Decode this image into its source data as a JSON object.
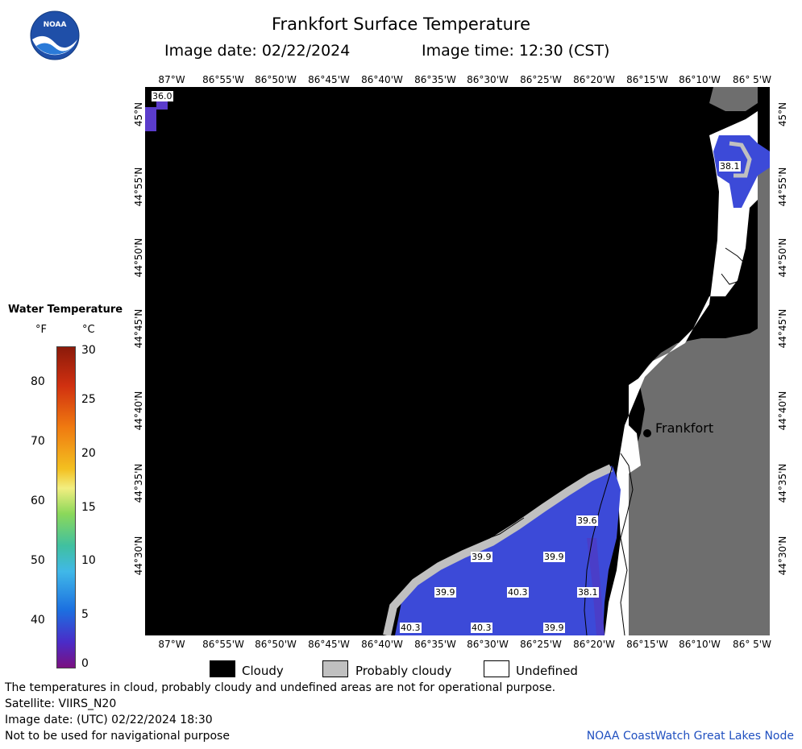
{
  "header": {
    "title": "Frankfort Surface Temperature",
    "image_date": "Image date: 02/22/2024",
    "image_time": "Image time: 12:30 (CST)"
  },
  "logo": {
    "text": "NOAA"
  },
  "map": {
    "lon_labels": [
      "87°W",
      "86°55'W",
      "86°50'W",
      "86°45'W",
      "86°40'W",
      "86°35'W",
      "86°30'W",
      "86°25'W",
      "86°20'W",
      "86°15'W",
      "86°10'W",
      "86° 5'W"
    ],
    "lat_labels": [
      "45°N",
      "44°55'N",
      "44°50'N",
      "44°45'N",
      "44°40'N",
      "44°35'N",
      "44°30'N"
    ],
    "city": "Frankfort",
    "temp_labels": [
      "36.0",
      "38.1",
      "39.6",
      "39.9",
      "39.9",
      "39.9",
      "40.3",
      "38.1",
      "40.3",
      "40.3",
      "39.9"
    ],
    "colors": {
      "cloudy": "#000000",
      "probably_cloudy": "#c0c0c0",
      "undefined": "#ffffff",
      "land": "#6e6e6e",
      "water_cold": "#3c4ad8"
    }
  },
  "colorbar": {
    "title": "Water Temperature",
    "unit_f": "°F",
    "unit_c": "°C",
    "f_ticks": [
      "80",
      "70",
      "60",
      "50",
      "40"
    ],
    "c_ticks": [
      "30",
      "25",
      "20",
      "15",
      "10",
      "5",
      "0"
    ]
  },
  "legend": {
    "cloudy": "Cloudy",
    "probably_cloudy": "Probably cloudy",
    "undefined": "Undefined"
  },
  "footer": {
    "note": "The temperatures in cloud, probably cloudy and undefined areas are not for operational purpose.",
    "satellite": "Satellite: VIIRS_N20",
    "utc": "Image date: (UTC) 02/22/2024  18:30",
    "nav": "Not to be used for navigational purpose",
    "credit": "NOAA CoastWatch Great Lakes Node"
  }
}
